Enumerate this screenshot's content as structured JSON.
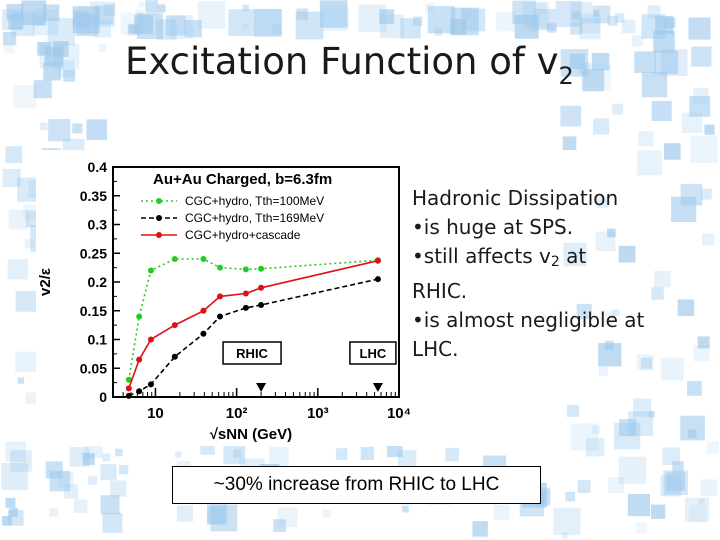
{
  "slide": {
    "title_main": "Excitation Function of v",
    "title_sub": "2",
    "bullets": {
      "heading": "Hadronic Dissipation",
      "b1": "•is huge at SPS.",
      "b2_pre": "•still affects v",
      "b2_sub": "2",
      "b2_post": " at",
      "b2_line2": "RHIC.",
      "b3": "•is almost negligible at",
      "b3_line2": "LHC."
    },
    "footnote": "~30% increase from RHIC to LHC"
  },
  "colors": {
    "green": "#22cc22",
    "black": "#000000",
    "red": "#e01010",
    "bg_tile": "#9cc8ec"
  },
  "chart_data": {
    "type": "line",
    "title": "Au+Au Charged, b=6.3fm",
    "ylabel": "v2/ε",
    "xlabel": "√sNN (GeV)",
    "xscale": "log",
    "xlim": [
      3,
      10000
    ],
    "ylim": [
      0,
      0.4
    ],
    "x_ticks": [
      {
        "v": 10,
        "t": "10"
      },
      {
        "v": 100,
        "t": "10²"
      },
      {
        "v": 1000,
        "t": "10³"
      },
      {
        "v": 10000,
        "t": "10⁴"
      }
    ],
    "y_ticks": [
      "0",
      "0.05",
      "0.1",
      "0.15",
      "0.2",
      "0.25",
      "0.3",
      "0.35",
      "0.4"
    ],
    "legend_position": "top-right",
    "annotations": [
      {
        "label": "RHIC",
        "x": 200
      },
      {
        "label": "LHC",
        "x": 5500
      }
    ],
    "series": [
      {
        "name": "CGC+hydro, Tth=100MeV",
        "color": "#22cc22",
        "style": "dotted",
        "x": [
          4.7,
          6.3,
          8.8,
          17.3,
          39,
          62.4,
          130,
          200,
          5500
        ],
        "y": [
          0.03,
          0.14,
          0.22,
          0.24,
          0.24,
          0.225,
          0.222,
          0.223,
          0.238
        ]
      },
      {
        "name": "CGC+hydro, Tth=169MeV",
        "color": "#000000",
        "style": "dashed",
        "x": [
          4.7,
          6.3,
          8.8,
          17.3,
          39,
          62.4,
          130,
          200,
          5500
        ],
        "y": [
          0.002,
          0.01,
          0.022,
          0.07,
          0.11,
          0.14,
          0.155,
          0.16,
          0.205
        ]
      },
      {
        "name": "CGC+hydro+cascade",
        "color": "#e01010",
        "style": "solid",
        "x": [
          4.7,
          6.3,
          8.8,
          17.3,
          39,
          62.4,
          130,
          200,
          5500
        ],
        "y": [
          0.015,
          0.065,
          0.1,
          0.125,
          0.15,
          0.175,
          0.18,
          0.19,
          0.237
        ]
      }
    ]
  }
}
